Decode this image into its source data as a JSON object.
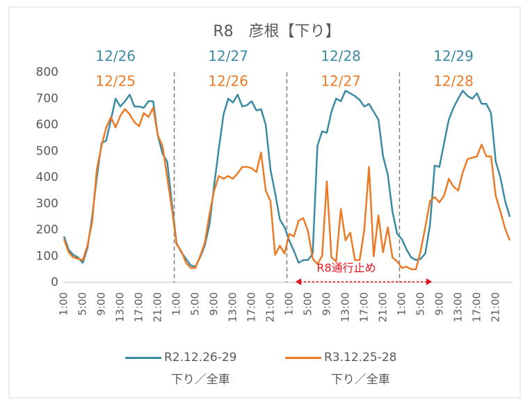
{
  "chart_data": {
    "type": "line",
    "title": "R8　彦根【下り】",
    "categories": [
      "1:00",
      null,
      null,
      null,
      "5:00",
      null,
      null,
      null,
      "9:00",
      null,
      null,
      null,
      "13:00",
      null,
      null,
      null,
      "17:00",
      null,
      null,
      null,
      "21:00",
      null,
      null,
      null,
      "1:00",
      null,
      null,
      null,
      "5:00",
      null,
      null,
      null,
      "9:00",
      null,
      null,
      null,
      "13:00",
      null,
      null,
      null,
      "17:00",
      null,
      null,
      null,
      "21:00",
      null,
      null,
      null,
      "1:00",
      null,
      null,
      null,
      "5:00",
      null,
      null,
      null,
      "9:00",
      null,
      null,
      null,
      "13:00",
      null,
      null,
      null,
      "17:00",
      null,
      null,
      null,
      "21:00",
      null,
      null,
      null,
      "1:00",
      null,
      null,
      null,
      "5:00",
      null,
      null,
      null,
      "9:00",
      null,
      null,
      null,
      "13:00",
      null,
      null,
      null,
      "17:00",
      null,
      null,
      null,
      "21:00",
      null,
      null,
      null
    ],
    "series": [
      {
        "name": "R2.12.26-29\n下り／全車",
        "color": "#3a8aa2",
        "values": [
          175,
          125,
          105,
          95,
          75,
          130,
          250,
          400,
          530,
          540,
          620,
          700,
          670,
          690,
          715,
          670,
          670,
          665,
          690,
          690,
          560,
          490,
          460,
          300,
          150,
          115,
          90,
          65,
          60,
          95,
          140,
          220,
          370,
          510,
          640,
          700,
          685,
          715,
          670,
          675,
          690,
          655,
          660,
          600,
          430,
          340,
          240,
          210,
          160,
          120,
          75,
          85,
          85,
          110,
          520,
          575,
          570,
          650,
          700,
          690,
          730,
          720,
          710,
          695,
          670,
          680,
          650,
          620,
          480,
          410,
          270,
          185,
          165,
          125,
          95,
          85,
          90,
          110,
          220,
          445,
          440,
          530,
          620,
          665,
          700,
          730,
          710,
          700,
          720,
          680,
          680,
          645,
          460,
          400,
          310,
          250
        ]
      },
      {
        "name": "R3.12.25-28\n下り／全車",
        "color": "#ea7a26",
        "values": [
          165,
          115,
          95,
          90,
          85,
          140,
          230,
          430,
          520,
          590,
          630,
          590,
          635,
          660,
          640,
          610,
          595,
          645,
          630,
          665,
          560,
          520,
          400,
          280,
          145,
          120,
          75,
          55,
          55,
          100,
          150,
          260,
          350,
          405,
          395,
          405,
          395,
          415,
          440,
          440,
          435,
          420,
          495,
          350,
          310,
          105,
          140,
          110,
          185,
          175,
          235,
          245,
          195,
          90,
          70,
          100,
          385,
          95,
          80,
          280,
          160,
          190,
          85,
          85,
          200,
          440,
          100,
          255,
          115,
          210,
          95,
          80,
          55,
          60,
          50,
          50,
          120,
          210,
          310,
          325,
          305,
          330,
          395,
          365,
          350,
          420,
          470,
          475,
          480,
          525,
          480,
          480,
          330,
          270,
          205,
          160
        ]
      }
    ],
    "day_labels": [
      {
        "top": "12/26",
        "bottom": "12/25"
      },
      {
        "top": "12/27",
        "bottom": "12/26"
      },
      {
        "top": "12/28",
        "bottom": "12/27"
      },
      {
        "top": "12/29",
        "bottom": "12/28"
      }
    ],
    "closure_label": "R8通行止め",
    "ylim": [
      0,
      800
    ],
    "yticks": [
      0,
      100,
      200,
      300,
      400,
      500,
      600,
      700,
      800
    ],
    "grid": false
  }
}
